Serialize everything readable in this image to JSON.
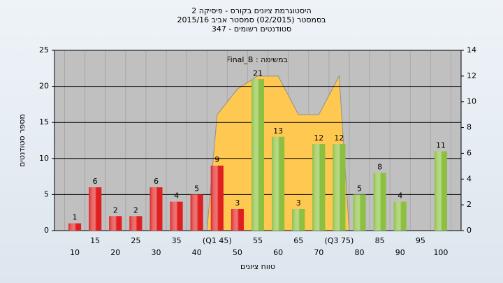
{
  "chart_data": {
    "type": "bar",
    "title": [
      "היסטוגרמת ציונים בקורס - פיסיקה 2",
      "בסמסטר  (02/2015)  סמסטר אביב 2015/16",
      "347 - סטודנטים רשומים"
    ],
    "annotation": "Final_B : במשימה",
    "ylabel": "מספר סטודנטים",
    "xlabel": "טווח ציונים",
    "categories": [
      "10",
      "15",
      "20",
      "25",
      "30",
      "35",
      "40",
      "(Q1 45)",
      "50",
      "55",
      "60",
      "65",
      "70",
      "(Q3 75)",
      "80",
      "85",
      "90",
      "95",
      "100"
    ],
    "series": [
      {
        "values": [
          1,
          6,
          2,
          2,
          6,
          4,
          5,
          9,
          3,
          21,
          13,
          3,
          12,
          12,
          5,
          8,
          4,
          null,
          11
        ],
        "colors": [
          "#e02020",
          "#e02020",
          "#e02020",
          "#e02020",
          "#e02020",
          "#e02020",
          "#e02020",
          "#e02020",
          "#e02020",
          "#8cc040",
          "#8cc040",
          "#8cc040",
          "#8cc040",
          "#8cc040",
          "#8cc040",
          "#8cc040",
          "#8cc040",
          "#8cc040",
          "#8cc040"
        ]
      },
      {
        "axis": "y2",
        "color": "#ffc850",
        "values": [
          null,
          null,
          null,
          null,
          null,
          null,
          null,
          9,
          11,
          12,
          12,
          9,
          9,
          12,
          null,
          null,
          null,
          null,
          null
        ]
      }
    ],
    "ylim": [
      0,
      25
    ],
    "yticks": [
      0,
      5,
      10,
      15,
      20,
      25
    ],
    "y2lim": [
      0,
      14
    ],
    "y2ticks": [
      0,
      2,
      4,
      6,
      8,
      10,
      12,
      14
    ],
    "grid": true
  }
}
